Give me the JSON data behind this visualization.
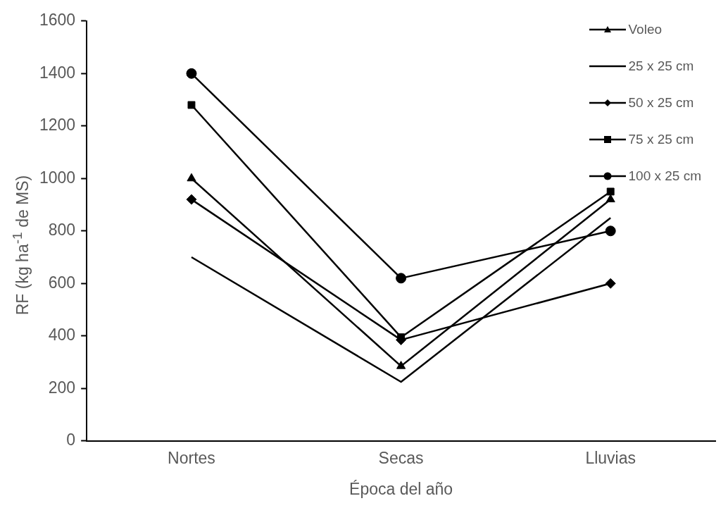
{
  "chart_data": {
    "type": "line",
    "xlabel": "Época del año",
    "ylabel": "RF (kg ha$^{-1}$ de MS)",
    "categories": [
      "Nortes",
      "Secas",
      "Lluvias"
    ],
    "series": [
      {
        "name": "Voleo",
        "color": "#000000",
        "marker": "triangle",
        "values": [
          1000,
          285,
          920
        ]
      },
      {
        "name": "25 x 25 cm",
        "color": "#000000",
        "marker": "none",
        "values": [
          700,
          225,
          850
        ]
      },
      {
        "name": "50 x 25 cm",
        "color": "#000000",
        "marker": "diamond",
        "values": [
          920,
          385,
          600
        ]
      },
      {
        "name": "75 x 25 cm",
        "color": "#000000",
        "marker": "square",
        "values": [
          1280,
          395,
          950
        ]
      },
      {
        "name": "100 x 25 cm",
        "color": "#000000",
        "marker": "circle",
        "values": [
          1400,
          620,
          800
        ]
      }
    ],
    "ylim": [
      0,
      1600
    ],
    "yticks": [
      0,
      200,
      400,
      600,
      800,
      1000,
      1200,
      1400,
      1600
    ],
    "grid": false,
    "legend": "top right",
    "line_style": "solid"
  }
}
